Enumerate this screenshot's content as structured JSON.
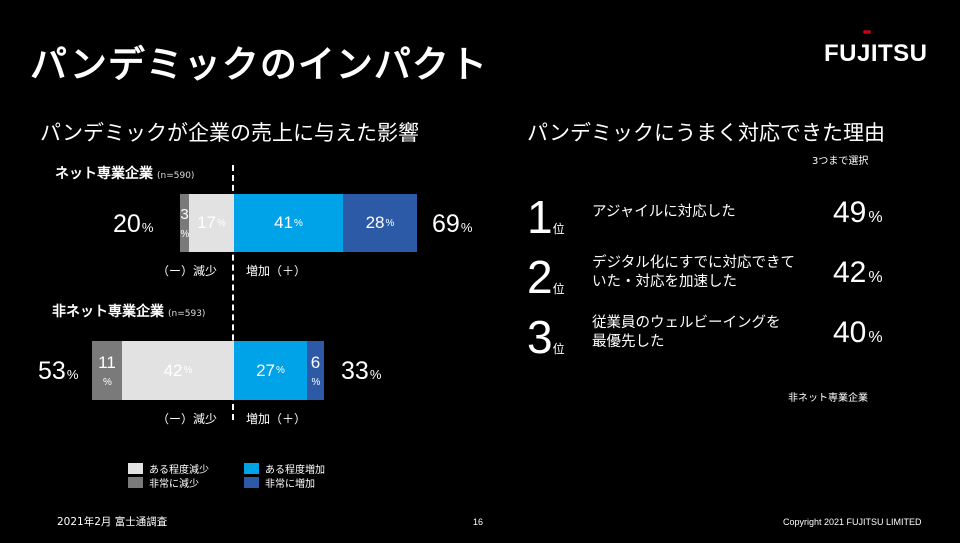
{
  "title": "パンデミックのインパクト",
  "logo": "FUJITSU",
  "left": {
    "subtitle": "パンデミックが企業の売上に与えた影響",
    "segments": [
      {
        "label": "ネット専業企業",
        "n": "(n=590)",
        "decrease_total": "20",
        "increase_total": "69",
        "bars": {
          "large_decrease": "3",
          "some_decrease": "17",
          "some_increase": "41",
          "large_increase": "28"
        }
      },
      {
        "label": "非ネット専業企業",
        "n": "(n=593)",
        "decrease_total": "53",
        "increase_total": "33",
        "bars": {
          "large_decrease": "11",
          "some_decrease": "42",
          "some_increase": "27",
          "large_increase": "6"
        }
      }
    ],
    "pct_sign": "%",
    "decrease_label": "（ー）減少",
    "increase_label": "増加（＋）",
    "legend": {
      "some_decrease": "ある程度減少",
      "large_decrease": "非常に減少",
      "some_increase": "ある程度増加",
      "large_increase": "非常に増加"
    },
    "colors": {
      "some_decrease": "#e2e2e2",
      "large_decrease": "#7a7a7a",
      "some_increase": "#00a3e8",
      "large_increase": "#2c5aa7"
    }
  },
  "right": {
    "subtitle": "パンデミックにうまく対応できた理由",
    "note": "3つまで選択",
    "rank_unit": "位",
    "ranks": [
      {
        "rank": "1",
        "reason_line1": "アジャイルに対応した",
        "reason_line2": "",
        "value": "49"
      },
      {
        "rank": "2",
        "reason_line1": "デジタル化にすでに対応できて",
        "reason_line2": "いた・対応を加速した",
        "value": "42"
      },
      {
        "rank": "3",
        "reason_line1": "従業員のウェルビーイングを",
        "reason_line2": "最優先した",
        "value": "40"
      }
    ],
    "scope": "非ネット専業企業"
  },
  "footer": {
    "source": "2021年2月 富士通調査",
    "page": "16",
    "copyright": "Copyright 2021 FUJITSU LIMITED"
  }
}
